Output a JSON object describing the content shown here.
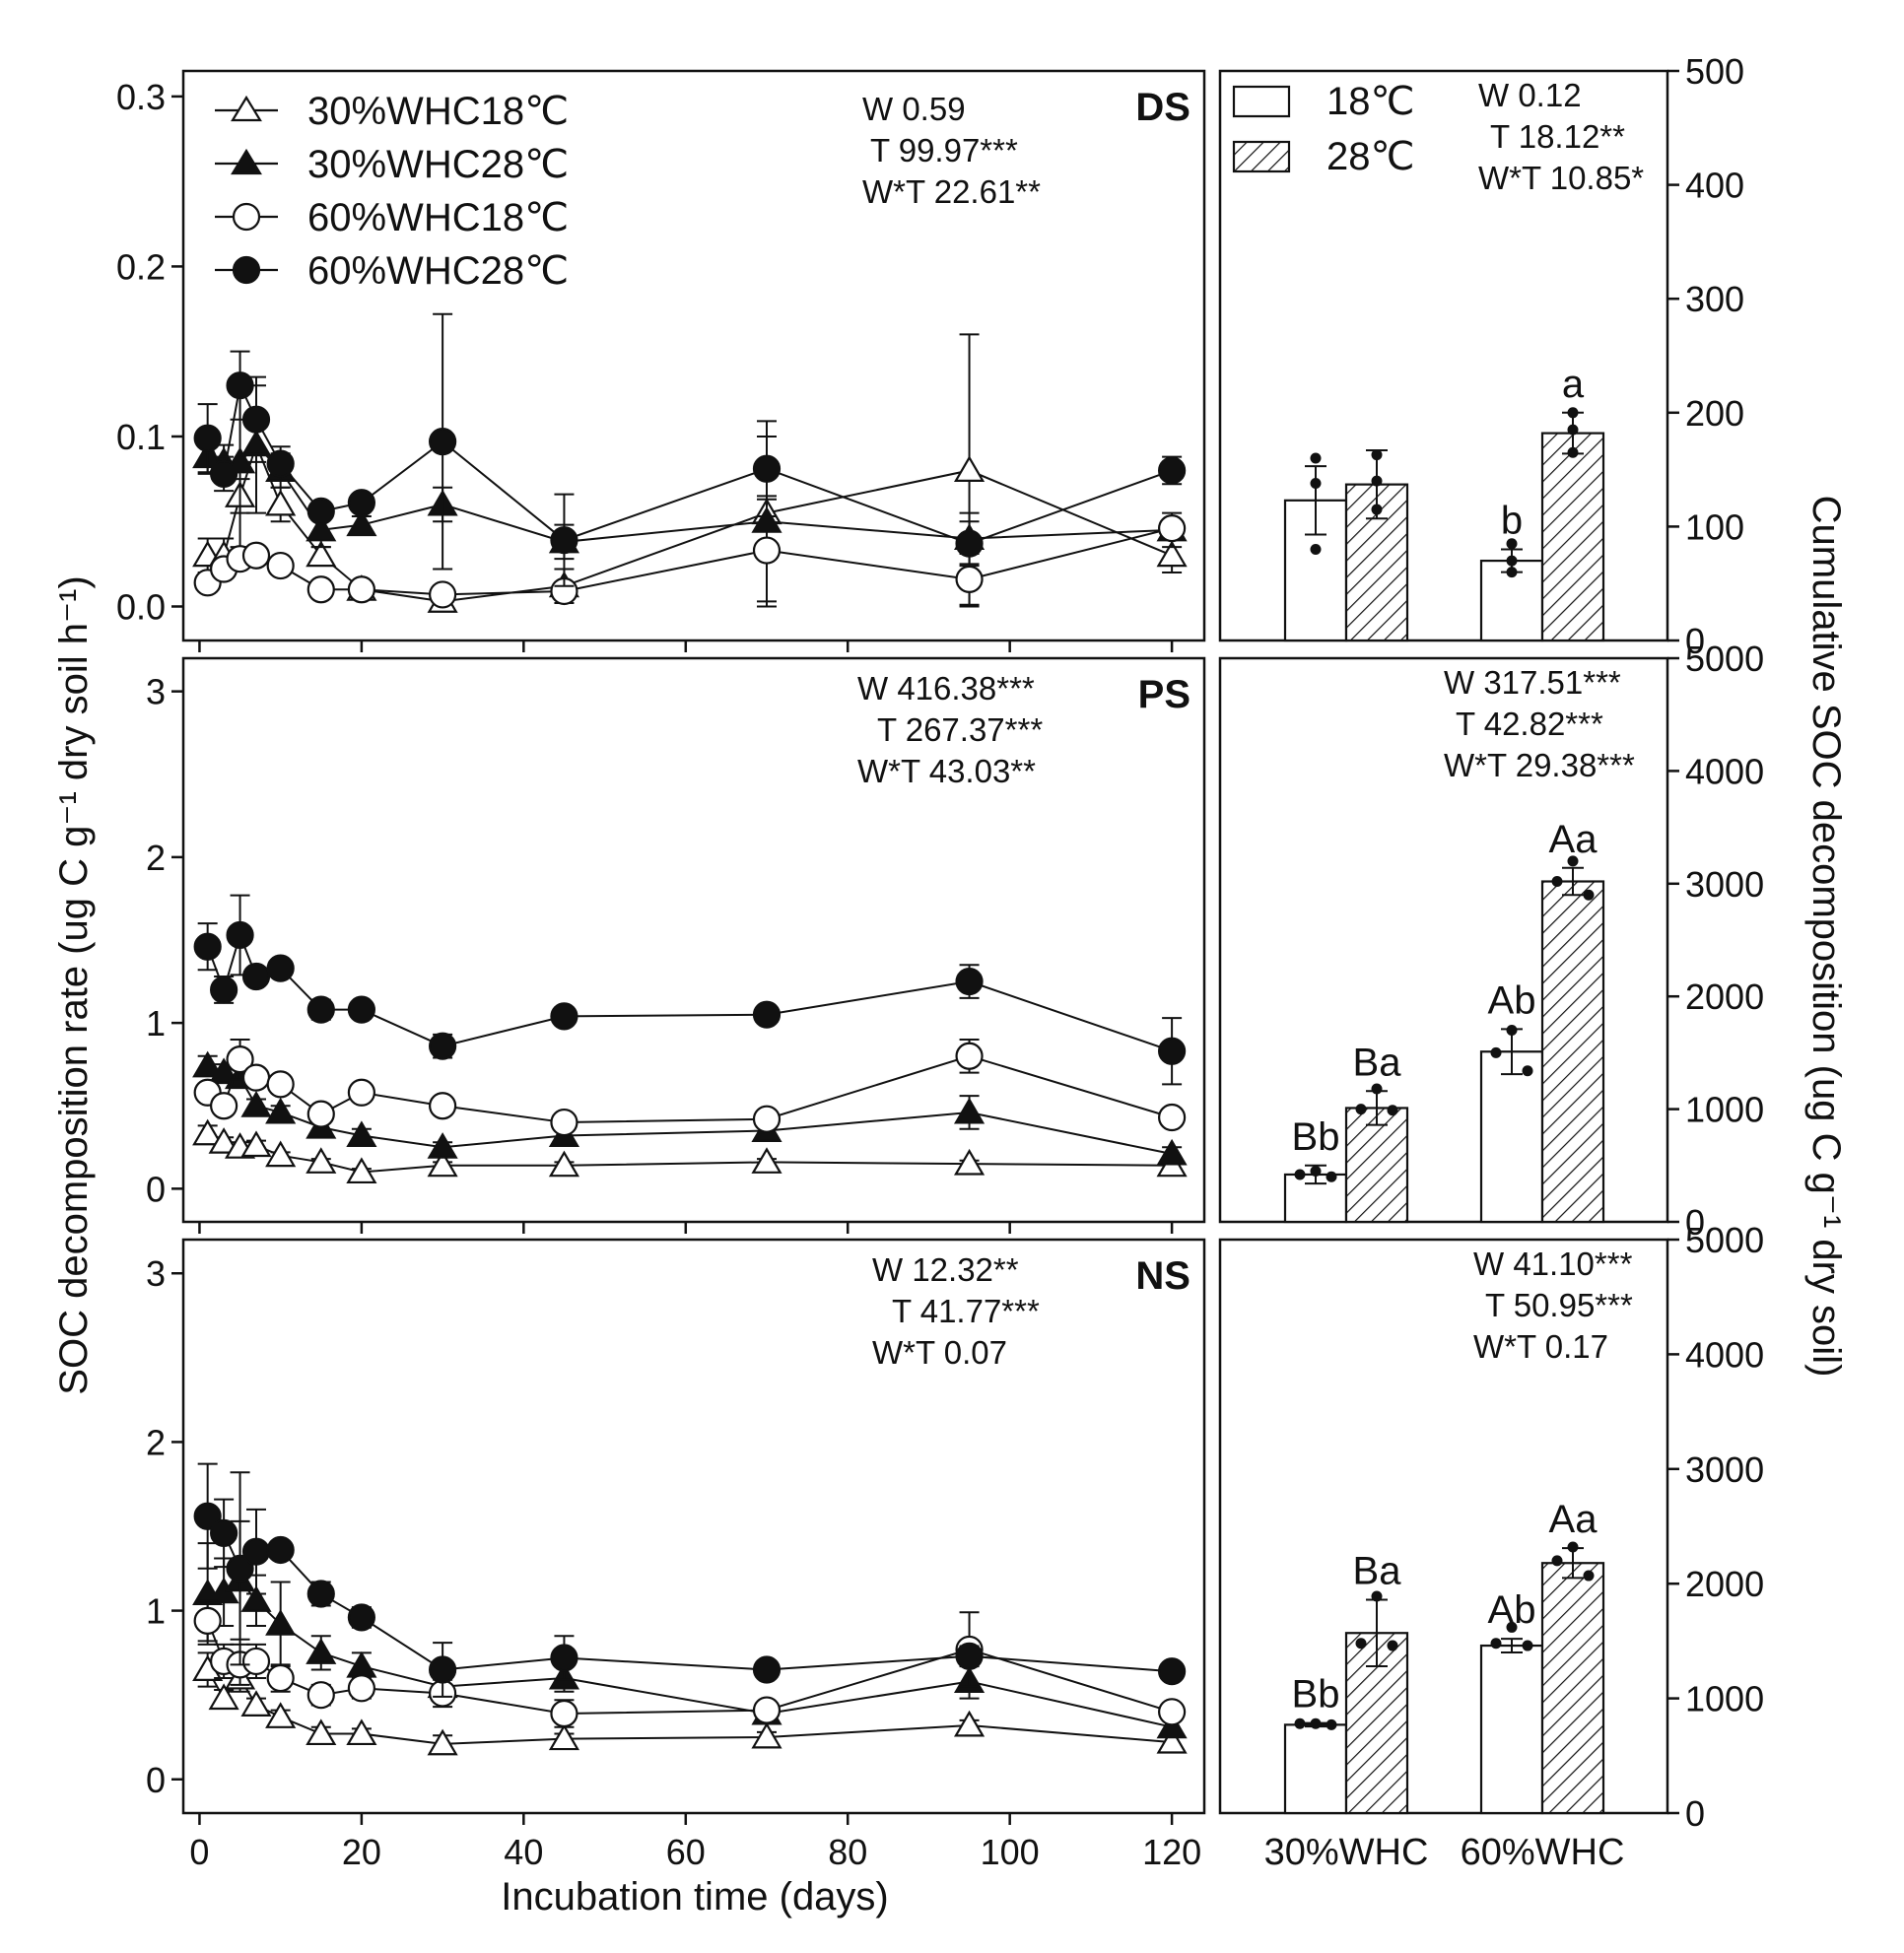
{
  "colors": {
    "ink": "#111111",
    "background": "#ffffff"
  },
  "chart_data": [
    {
      "panel": "DS",
      "type": "line",
      "title": "DS",
      "xlabel": "Incubation time  (days)",
      "ylabel": "SOC decomposition rate (ug C g⁻¹ dry soil h⁻¹)",
      "xlim": [
        -2,
        124
      ],
      "ylim": [
        -0.02,
        0.315
      ],
      "yticks": [
        0.0,
        0.1,
        0.2,
        0.3
      ],
      "ytick_labels": [
        "0.0",
        "0.1",
        "0.2",
        "0.3"
      ],
      "xticks": [
        0,
        20,
        40,
        60,
        80,
        100,
        120
      ],
      "grid": false,
      "stats": [
        "W 0.59",
        "T 99.97***",
        "W*T 22.61**"
      ],
      "x": [
        1,
        3,
        5,
        7,
        10,
        15,
        20,
        30,
        45,
        70,
        95,
        120
      ],
      "series": [
        {
          "name": "30%WHC18℃",
          "marker": "triangle",
          "filled": false,
          "values": [
            0.03,
            0.03,
            0.065,
            0.095,
            0.06,
            0.03,
            0.01,
            0.003,
            0.012,
            0.055,
            0.08,
            0.03
          ],
          "errors": [
            0.01,
            0.01,
            0.01,
            0.01,
            0.01,
            0.005,
            0.005,
            0.005,
            0.01,
            0.01,
            0.08,
            0.01
          ]
        },
        {
          "name": "30%WHC28℃",
          "marker": "triangle",
          "filled": true,
          "values": [
            0.088,
            0.085,
            0.085,
            0.095,
            0.08,
            0.045,
            0.048,
            0.06,
            0.038,
            0.05,
            0.04,
            0.045
          ],
          "errors": [
            0.01,
            0.01,
            0.05,
            0.04,
            0.01,
            0.01,
            0.005,
            0.01,
            0.01,
            0.05,
            0.015,
            0.01
          ]
        },
        {
          "name": "60%WHC18℃",
          "marker": "circle",
          "filled": false,
          "values": [
            0.014,
            0.022,
            0.028,
            0.03,
            0.024,
            0.01,
            0.01,
            0.007,
            0.009,
            0.033,
            0.016,
            0.046
          ],
          "errors": [
            0.005,
            0.005,
            0.005,
            0.005,
            0.005,
            0.005,
            0.005,
            0.005,
            0.005,
            0.03,
            0.015,
            0.005
          ]
        },
        {
          "name": "60%WHC28℃",
          "marker": "circle",
          "filled": true,
          "values": [
            0.099,
            0.078,
            0.13,
            0.11,
            0.084,
            0.056,
            0.061,
            0.097,
            0.039,
            0.081,
            0.037,
            0.08
          ],
          "errors": [
            0.02,
            0.01,
            0.02,
            0.02,
            0.01,
            0.005,
            0.005,
            0.075,
            0.027,
            0.028,
            0.013,
            0.008
          ]
        }
      ]
    },
    {
      "panel": "PS",
      "type": "line",
      "title": "PS",
      "xlim": [
        -2,
        124
      ],
      "ylim": [
        -0.2,
        3.2
      ],
      "yticks": [
        0,
        1,
        2,
        3
      ],
      "ytick_labels": [
        "0",
        "1",
        "2",
        "3"
      ],
      "stats": [
        "W 416.38***",
        "T 267.37***",
        "W*T 43.03**"
      ],
      "x": [
        1,
        3,
        5,
        7,
        10,
        15,
        20,
        30,
        45,
        70,
        95,
        120
      ],
      "series": [
        {
          "name": "30%WHC18℃",
          "marker": "triangle",
          "filled": false,
          "values": [
            0.33,
            0.28,
            0.25,
            0.26,
            0.2,
            0.16,
            0.1,
            0.14,
            0.14,
            0.16,
            0.15,
            0.14
          ],
          "errors": [
            0.05,
            0.03,
            0.03,
            0.03,
            0.02,
            0.02,
            0.02,
            0.02,
            0.02,
            0.02,
            0.02,
            0.02
          ]
        },
        {
          "name": "30%WHC28℃",
          "marker": "triangle",
          "filled": true,
          "values": [
            0.74,
            0.7,
            0.67,
            0.5,
            0.46,
            0.37,
            0.32,
            0.25,
            0.32,
            0.35,
            0.46,
            0.21
          ],
          "errors": [
            0.06,
            0.05,
            0.05,
            0.04,
            0.04,
            0.05,
            0.04,
            0.03,
            0.04,
            0.04,
            0.1,
            0.04
          ]
        },
        {
          "name": "60%WHC18℃",
          "marker": "circle",
          "filled": false,
          "values": [
            0.58,
            0.5,
            0.78,
            0.67,
            0.63,
            0.45,
            0.58,
            0.5,
            0.4,
            0.42,
            0.8,
            0.43
          ],
          "errors": [
            0.05,
            0.05,
            0.12,
            0.05,
            0.05,
            0.04,
            0.04,
            0.03,
            0.03,
            0.03,
            0.1,
            0.05
          ]
        },
        {
          "name": "60%WHC28℃",
          "marker": "circle",
          "filled": true,
          "values": [
            1.46,
            1.2,
            1.53,
            1.28,
            1.33,
            1.08,
            1.08,
            0.86,
            1.04,
            1.05,
            1.25,
            0.83
          ],
          "errors": [
            0.14,
            0.08,
            0.24,
            0.05,
            0.04,
            0.06,
            0.04,
            0.07,
            0.04,
            0.03,
            0.1,
            0.2
          ]
        }
      ]
    },
    {
      "panel": "NS",
      "type": "line",
      "title": "NS",
      "xlim": [
        -2,
        124
      ],
      "ylim": [
        -0.2,
        3.2
      ],
      "yticks": [
        0,
        1,
        2,
        3
      ],
      "ytick_labels": [
        "0",
        "1",
        "2",
        "3"
      ],
      "xtick_labels": [
        "0",
        "20",
        "40",
        "60",
        "80",
        "100",
        "120"
      ],
      "stats": [
        "W 12.32**",
        "T 41.77***",
        "W*T 0.07"
      ],
      "x": [
        1,
        3,
        5,
        7,
        10,
        15,
        20,
        30,
        45,
        70,
        95,
        120
      ],
      "series": [
        {
          "name": "30%WHC18℃",
          "marker": "triangle",
          "filled": false,
          "values": [
            0.65,
            0.48,
            0.6,
            0.44,
            0.37,
            0.27,
            0.27,
            0.21,
            0.24,
            0.25,
            0.32,
            0.22
          ],
          "errors": [
            0.1,
            0.05,
            0.08,
            0.04,
            0.04,
            0.04,
            0.03,
            0.05,
            0.03,
            0.03,
            0.03,
            0.03
          ]
        },
        {
          "name": "30%WHC28℃",
          "marker": "triangle",
          "filled": true,
          "values": [
            1.1,
            1.11,
            1.18,
            1.06,
            0.92,
            0.75,
            0.67,
            0.55,
            0.6,
            0.39,
            0.58,
            0.31
          ],
          "errors": [
            0.3,
            0.2,
            0.35,
            0.15,
            0.25,
            0.1,
            0.08,
            0.08,
            0.08,
            0.05,
            0.1,
            0.05
          ]
        },
        {
          "name": "60%WHC18℃",
          "marker": "circle",
          "filled": false,
          "values": [
            0.94,
            0.7,
            0.68,
            0.7,
            0.6,
            0.5,
            0.54,
            0.51,
            0.39,
            0.41,
            0.77,
            0.4
          ],
          "errors": [
            0.12,
            0.1,
            0.12,
            0.1,
            0.08,
            0.06,
            0.06,
            0.08,
            0.08,
            0.05,
            0.22,
            0.05
          ]
        },
        {
          "name": "60%WHC28℃",
          "marker": "circle",
          "filled": true,
          "values": [
            1.56,
            1.46,
            1.25,
            1.35,
            1.36,
            1.1,
            0.96,
            0.65,
            0.72,
            0.65,
            0.73,
            0.64
          ],
          "errors": [
            0.31,
            0.2,
            0.57,
            0.25,
            0.05,
            0.07,
            0.06,
            0.16,
            0.13,
            0.04,
            0.06,
            0.04
          ]
        }
      ]
    },
    {
      "panel": "DS-cumulative",
      "type": "bar",
      "categories": [
        "30%WHC",
        "60%WHC"
      ],
      "ylabel": "Cumulative SOC decomposition (ug C g⁻¹ dry soil)",
      "ylim": [
        0,
        500
      ],
      "yticks": [
        0,
        100,
        200,
        300,
        400,
        500
      ],
      "ytick_labels": [
        "0",
        "100",
        "200",
        "300",
        "400",
        "500"
      ],
      "legend": [
        "18℃",
        "28℃"
      ],
      "stats": [
        "W 0.12",
        "T 18.12**",
        "W*T 10.85*"
      ],
      "series": [
        {
          "name": "18℃",
          "pattern": "open",
          "values": [
            123,
            70
          ],
          "errors": [
            30,
            10
          ],
          "letters": [
            "",
            "b"
          ],
          "points": [
            [
              160,
              138,
              80
            ],
            [
              85,
              70,
              60
            ]
          ]
        },
        {
          "name": "28℃",
          "pattern": "hatched",
          "values": [
            137,
            182
          ],
          "errors": [
            30,
            18
          ],
          "letters": [
            "",
            "a"
          ],
          "points": [
            [
              163,
              140,
              115
            ],
            [
              200,
              185,
              165
            ]
          ]
        }
      ]
    },
    {
      "panel": "PS-cumulative",
      "type": "bar",
      "categories": [
        "30%WHC",
        "60%WHC"
      ],
      "ylim": [
        0,
        5000
      ],
      "yticks": [
        0,
        1000,
        2000,
        3000,
        4000,
        5000
      ],
      "ytick_labels": [
        "0",
        "1000",
        "2000",
        "3000",
        "4000",
        "5000"
      ],
      "stats": [
        "W 317.51***",
        "T 42.82***",
        "W*T 29.38***"
      ],
      "series": [
        {
          "name": "18℃",
          "pattern": "open",
          "values": [
            420,
            1510
          ],
          "errors": [
            80,
            200
          ],
          "letters": [
            "Bb",
            "Ab"
          ],
          "points": [
            [
              450,
              420,
              400
            ],
            [
              1700,
              1500,
              1340
            ]
          ]
        },
        {
          "name": "28℃",
          "pattern": "hatched",
          "values": [
            1010,
            3020
          ],
          "errors": [
            150,
            120
          ],
          "letters": [
            "Ba",
            "Aa"
          ],
          "points": [
            [
              1180,
              1000,
              990
            ],
            [
              3200,
              3020,
              2900
            ]
          ]
        }
      ]
    },
    {
      "panel": "NS-cumulative",
      "type": "bar",
      "categories": [
        "30%WHC",
        "60%WHC"
      ],
      "ylim": [
        0,
        5000
      ],
      "yticks": [
        0,
        1000,
        2000,
        3000,
        4000,
        5000
      ],
      "ytick_labels": [
        "0",
        "1000",
        "2000",
        "3000",
        "4000",
        "5000"
      ],
      "xtick_labels": [
        "30%WHC",
        "60%WHC"
      ],
      "stats": [
        "W 41.10***",
        "T 50.95***",
        "W*T 0.17"
      ],
      "series": [
        {
          "name": "18℃",
          "pattern": "open",
          "values": [
            770,
            1460
          ],
          "errors": [
            15,
            60
          ],
          "letters": [
            "Bb",
            "Ab"
          ],
          "points": [
            [
              780,
              780,
              770
            ],
            [
              1620,
              1480,
              1460
            ]
          ]
        },
        {
          "name": "28℃",
          "pattern": "hatched",
          "values": [
            1570,
            2180
          ],
          "errors": [
            290,
            130
          ],
          "letters": [
            "Ba",
            "Aa"
          ],
          "points": [
            [
              1890,
              1480,
              1460
            ],
            [
              2320,
              2200,
              2070
            ]
          ]
        }
      ]
    }
  ]
}
